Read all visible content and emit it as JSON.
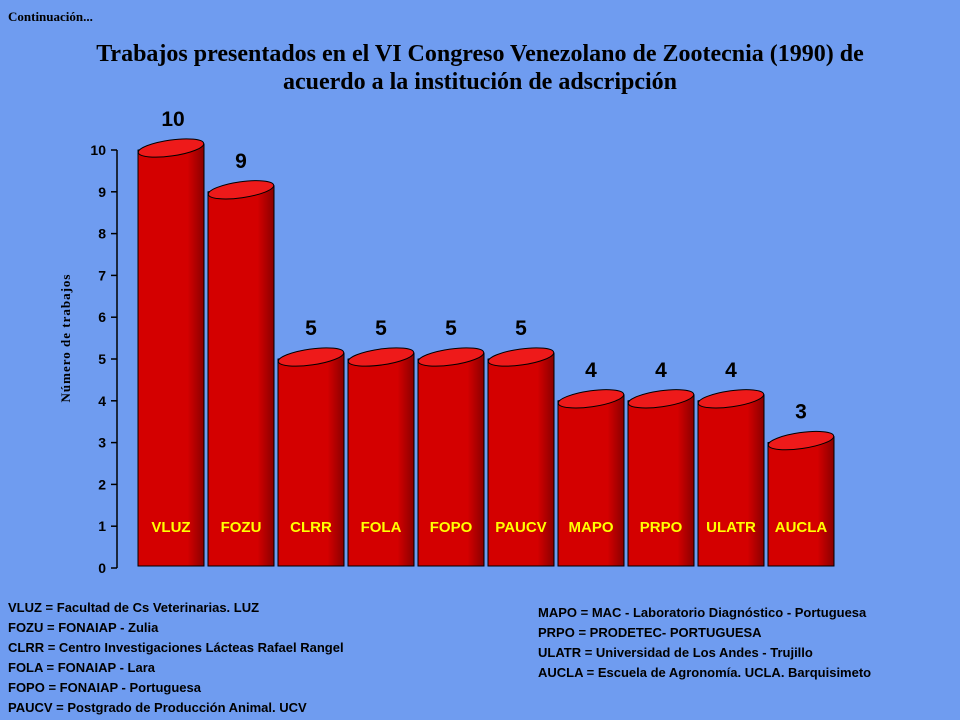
{
  "header": {
    "continuation": "Continuación...",
    "title_line1": "Trabajos presentados en el VI Congreso Venezolano de Zootecnia (1990) de",
    "title_line2": "acuerdo a la institución de adscripción"
  },
  "colors": {
    "background": "#6f9cf0",
    "bar_face": "#d40000",
    "bar_top": "#ee1a1a",
    "bar_shade": "#8a0000",
    "category_label": "#ffff00"
  },
  "chart_data": {
    "type": "bar",
    "title": "Trabajos presentados en el VI Congreso Venezolano de Zootecnia (1990) de acuerdo a la institución de adscripción",
    "xlabel": "",
    "ylabel": "Número de trabajos",
    "categories": [
      "VLUZ",
      "FOZU",
      "CLRR",
      "FOLA",
      "FOPO",
      "PAUCV",
      "MAPO",
      "PRPO",
      "ULATR",
      "AUCLA"
    ],
    "values": [
      10,
      9,
      5,
      5,
      5,
      5,
      4,
      4,
      4,
      3
    ],
    "data_labels": [
      "10",
      "9",
      "5",
      "5",
      "5",
      "5",
      "4",
      "4",
      "4",
      "3"
    ],
    "ylim": [
      0,
      10
    ],
    "yticks": [
      "0",
      "1",
      "2",
      "3",
      "4",
      "5",
      "6",
      "7",
      "8",
      "9",
      "10"
    ],
    "grid": false,
    "style": "3d-cylinder"
  },
  "legend": {
    "left": [
      "VLUZ = Facultad de Cs Veterinarias. LUZ",
      "FOZU = FONAIAP - Zulia",
      "CLRR = Centro Investigaciones Lácteas Rafael Rangel",
      "FOLA = FONAIAP - Lara",
      "FOPO = FONAIAP - Portuguesa",
      "PAUCV = Postgrado de Producción  Animal. UCV"
    ],
    "right": [
      "MAPO = MAC - Laboratorio Diagnóstico - Portuguesa",
      "PRPO = PRODETEC- PORTUGUESA",
      "ULATR = Universidad de Los Andes - Trujillo",
      "AUCLA = Escuela de Agronomía. UCLA. Barquisimeto"
    ]
  }
}
